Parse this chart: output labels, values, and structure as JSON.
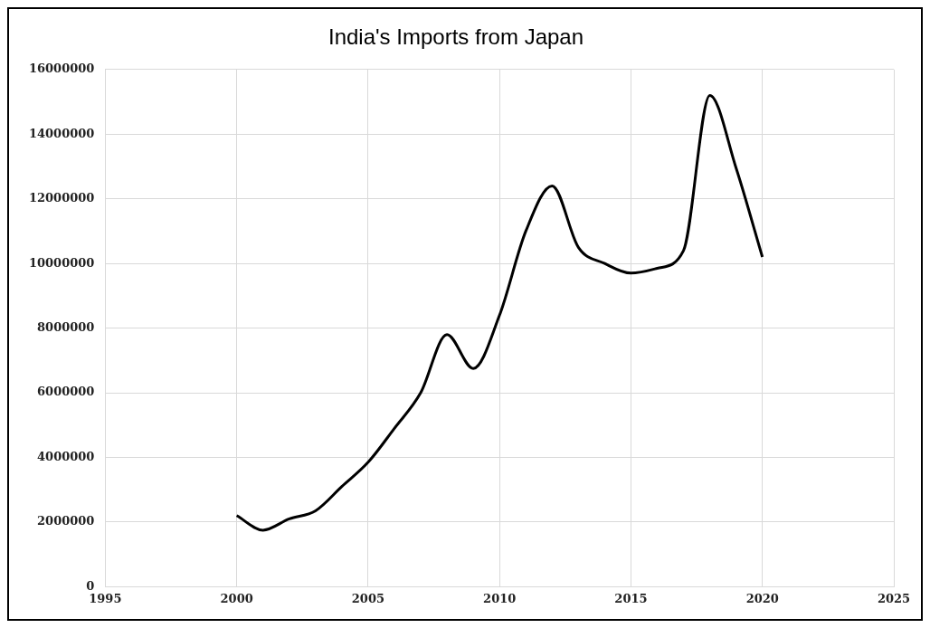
{
  "chart_data": {
    "type": "line",
    "title": "India's Imports from Japan",
    "x": [
      2000,
      2001,
      2002,
      2003,
      2004,
      2005,
      2006,
      2007,
      2008,
      2009,
      2010,
      2011,
      2012,
      2013,
      2014,
      2015,
      2016,
      2017,
      2018,
      2019,
      2020
    ],
    "series": [
      {
        "color": "#000000",
        "values": [
          2200000,
          1750000,
          2100000,
          2350000,
          3100000,
          3850000,
          4900000,
          6000000,
          7800000,
          6750000,
          8400000,
          11000000,
          12400000,
          10500000,
          10000000,
          9700000,
          9850000,
          10400000,
          15200000,
          12950000,
          10200000
        ]
      }
    ],
    "xlim": [
      1995,
      2025
    ],
    "xticks": [
      1995,
      2000,
      2005,
      2010,
      2015,
      2020,
      2025
    ],
    "ylim": [
      0,
      16000000
    ],
    "yticks": [
      0,
      2000000,
      4000000,
      6000000,
      8000000,
      10000000,
      12000000,
      14000000,
      16000000
    ],
    "grid": true,
    "legend": false,
    "marker": "none",
    "line_style": "solid"
  }
}
